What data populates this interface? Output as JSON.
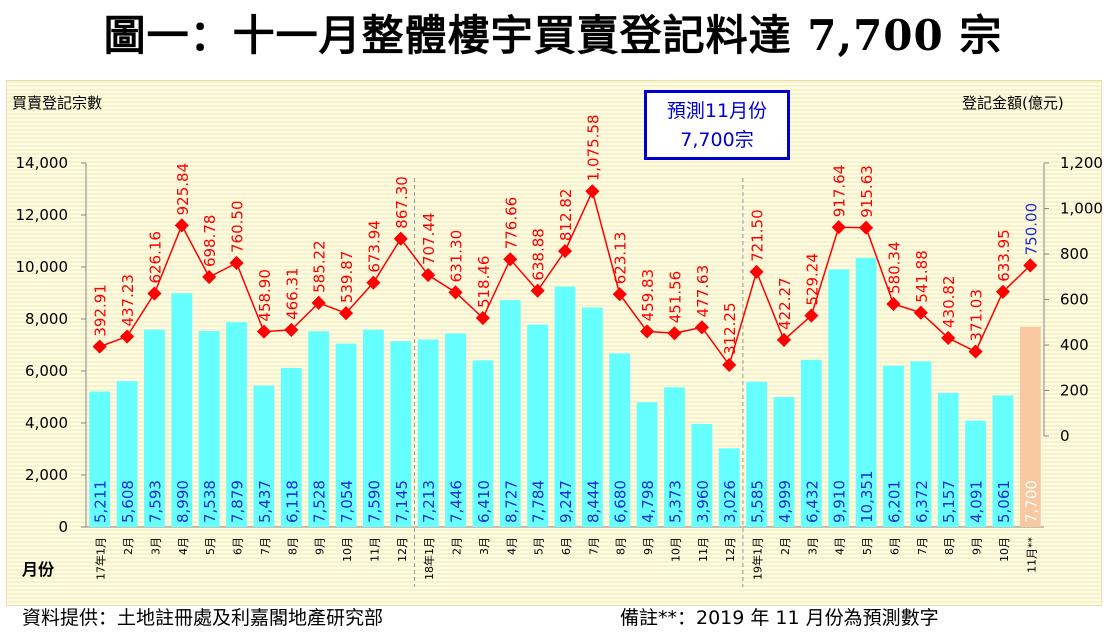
{
  "title": "圖一：十一月整體樓宇買賣登記料達 7,700 宗",
  "footer": {
    "source": "資料提供：土地註冊處及利嘉閣地產研究部",
    "note": "備註**：2019 年 11 月份為預測數字"
  },
  "forecast_box": {
    "line1": "預測11月份",
    "line2": "7,700宗"
  },
  "chart_data": {
    "type": "bar+line",
    "ylabel_left": "買賣登記宗數",
    "ylabel_right": "登記金額(億元)",
    "xlabel": "月份",
    "ylim_left": [
      0,
      14000
    ],
    "yticks_left": [
      "0",
      "2,000",
      "4,000",
      "6,000",
      "8,000",
      "10,000",
      "12,000",
      "14,000"
    ],
    "ylim_right": [
      -400,
      1200
    ],
    "yticks_right": [
      "0",
      "200",
      "400",
      "600",
      "800",
      "1,000",
      "1,200"
    ],
    "categories": [
      "17年1月",
      "2月",
      "3月",
      "4月",
      "5月",
      "6月",
      "7月",
      "8月",
      "9月",
      "10月",
      "11月",
      "12月",
      "18年1月",
      "2月",
      "3月",
      "4月",
      "5月",
      "6月",
      "7月",
      "8月",
      "9月",
      "10月",
      "11月",
      "12月",
      "19年1月",
      "2月",
      "3月",
      "4月",
      "5月",
      "6月",
      "7月",
      "8月",
      "9月",
      "10月",
      "11月**"
    ],
    "series": [
      {
        "name": "買賣登記宗數",
        "type": "bar",
        "axis": "left",
        "color": "#66ffff",
        "forecast_color": "#f8c8a0",
        "values": [
          5211,
          5608,
          7593,
          8990,
          7538,
          7879,
          5437,
          6118,
          7528,
          7054,
          7590,
          7145,
          7213,
          7446,
          6410,
          8727,
          7784,
          9247,
          8444,
          6680,
          4798,
          5373,
          3960,
          3026,
          5585,
          4999,
          6432,
          9910,
          10351,
          6201,
          6372,
          5157,
          4091,
          5061,
          7700
        ],
        "labels": [
          "5,211",
          "5,608",
          "7,593",
          "8,990",
          "7,538",
          "7,879",
          "5,437",
          "6,118",
          "7,528",
          "7,054",
          "7,590",
          "7,145",
          "7,213",
          "7,446",
          "6,410",
          "8,727",
          "7,784",
          "9,247",
          "8,444",
          "6,680",
          "4,798",
          "5,373",
          "3,960",
          "3,026",
          "5,585",
          "4,999",
          "6,432",
          "9,910",
          "10,351",
          "6,201",
          "6,372",
          "5,157",
          "4,091",
          "5,061",
          "7,700"
        ]
      },
      {
        "name": "登記金額(億元)",
        "type": "line",
        "axis": "right",
        "color": "#ff0000",
        "values": [
          392.91,
          437.23,
          626.16,
          925.84,
          698.78,
          760.5,
          458.9,
          466.31,
          585.22,
          539.87,
          673.94,
          867.3,
          707.44,
          631.3,
          518.46,
          776.66,
          638.88,
          812.82,
          1075.58,
          623.13,
          459.83,
          451.56,
          477.63,
          312.25,
          721.5,
          422.27,
          529.24,
          917.64,
          915.63,
          580.34,
          541.88,
          430.82,
          371.03,
          633.95,
          750.0
        ],
        "labels": [
          "392.91",
          "437.23",
          "626.16",
          "925.84",
          "698.78",
          "760.50",
          "458.90",
          "466.31",
          "585.22",
          "539.87",
          "673.94",
          "867.30",
          "707.44",
          "631.30",
          "518.46",
          "776.66",
          "638.88",
          "812.82",
          "1,075.58",
          "623.13",
          "459.83",
          "451.56",
          "477.63",
          "312.25",
          "721.50",
          "422.27",
          "529.24",
          "917.64",
          "915.63",
          "580.34",
          "541.88",
          "430.82",
          "371.03",
          "633.95",
          "750.00"
        ]
      }
    ]
  }
}
